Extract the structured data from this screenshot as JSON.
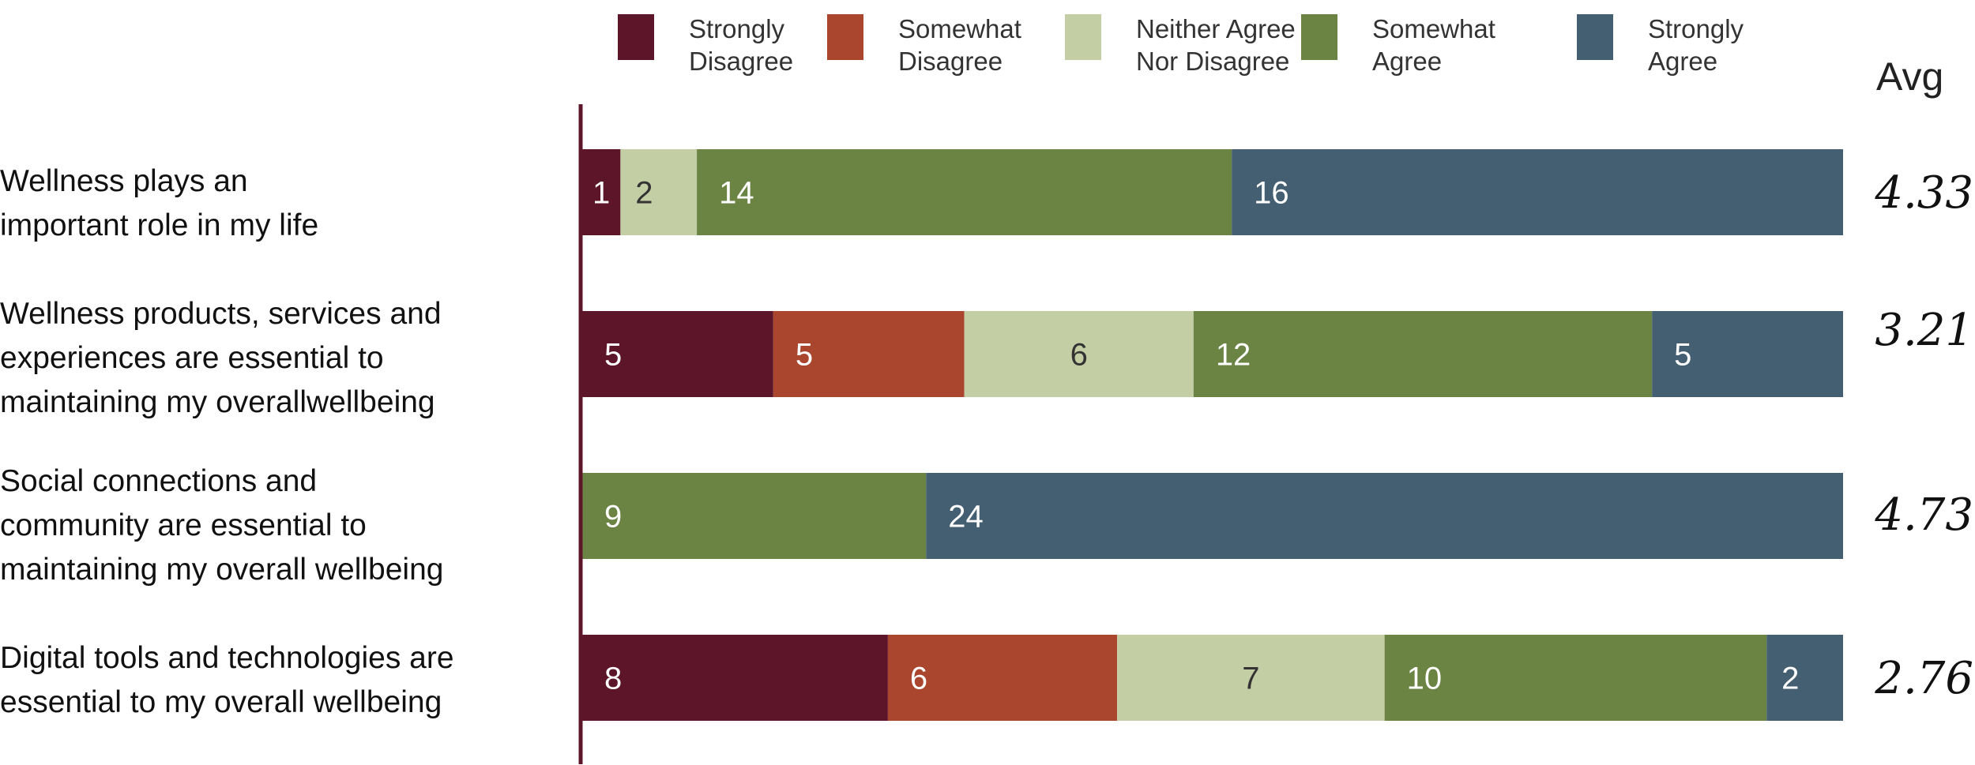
{
  "chart_data": {
    "type": "bar",
    "orientation": "horizontal",
    "stacked": true,
    "categories": [
      "Wellness plays an\nimportant role in my life",
      "Wellness products, services and\nexperiences are essential to\nmaintaining my overallwellbeing",
      "Social connections and\ncommunity are essential to\nmaintaining my overall wellbeing",
      "Digital tools and technologies are\nessential to my overall wellbeing"
    ],
    "series": [
      {
        "name": "Strongly\nDisagree",
        "color": "#5c1529",
        "values": [
          1,
          5,
          0,
          8
        ]
      },
      {
        "name": "Somewhat\nDisagree",
        "color": "#a9462d",
        "values": [
          0,
          5,
          0,
          6
        ]
      },
      {
        "name": "Neither Agree\nNor Disagree",
        "color": "#c4cea5",
        "values": [
          2,
          6,
          0,
          7
        ]
      },
      {
        "name": "Somewhat\nAgree",
        "color": "#6b8443",
        "values": [
          14,
          12,
          9,
          10
        ]
      },
      {
        "name": "Strongly\nAgree",
        "color": "#445f72",
        "values": [
          16,
          5,
          24,
          2
        ]
      }
    ],
    "avg_header": "Avg",
    "averages": [
      "4.33",
      "3.21",
      "4.73",
      "2.76"
    ],
    "legend_position": "top",
    "grid": false,
    "axis_color": "#5c1529",
    "label_colors": {
      "on_light": "#333333",
      "on_dark": "#ffffff"
    }
  }
}
